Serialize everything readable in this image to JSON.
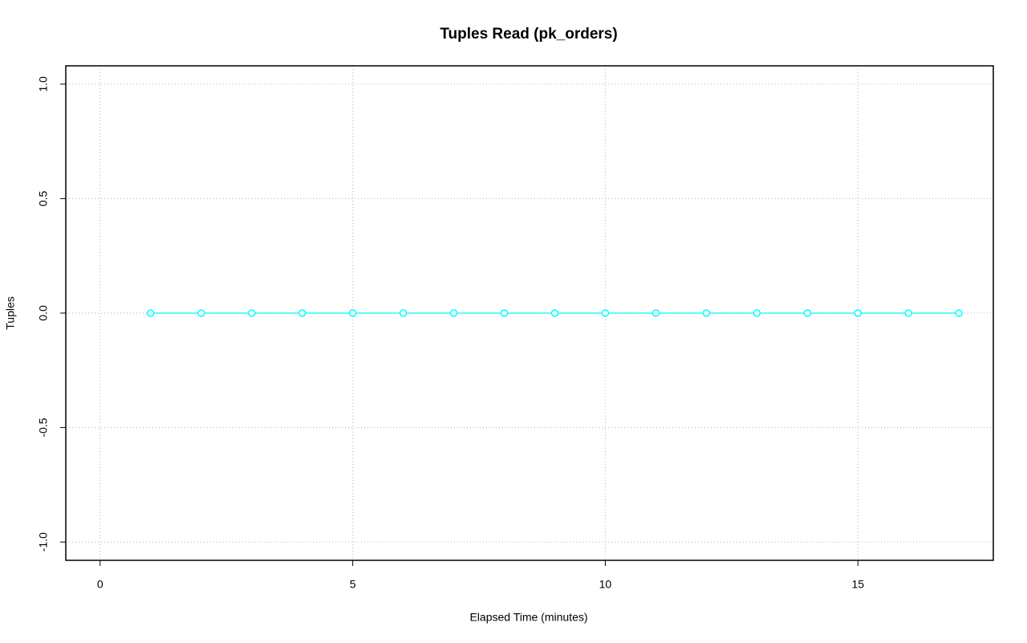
{
  "chart_data": {
    "type": "line",
    "title": "Tuples Read (pk_orders)",
    "x_label": "Elapsed Time (minutes)",
    "y_label": "Tuples",
    "x": [
      1,
      2,
      3,
      4,
      5,
      6,
      7,
      8,
      9,
      10,
      11,
      12,
      13,
      14,
      15,
      16,
      17
    ],
    "values": [
      0,
      0,
      0,
      0,
      0,
      0,
      0,
      0,
      0,
      0,
      0,
      0,
      0,
      0,
      0,
      0,
      0
    ],
    "color": "#00ffff",
    "xlim": [
      -0.68,
      17.68
    ],
    "xticks": [
      0,
      5,
      10,
      15
    ],
    "ylim": [
      -1.08,
      1.08
    ],
    "yticks": [
      {
        "value": -1,
        "label": "-1.0"
      },
      -0.5,
      {
        "value": 0,
        "label": "0.0"
      },
      0.5,
      {
        "value": 1,
        "label": "1.0"
      }
    ],
    "grid": true
  }
}
